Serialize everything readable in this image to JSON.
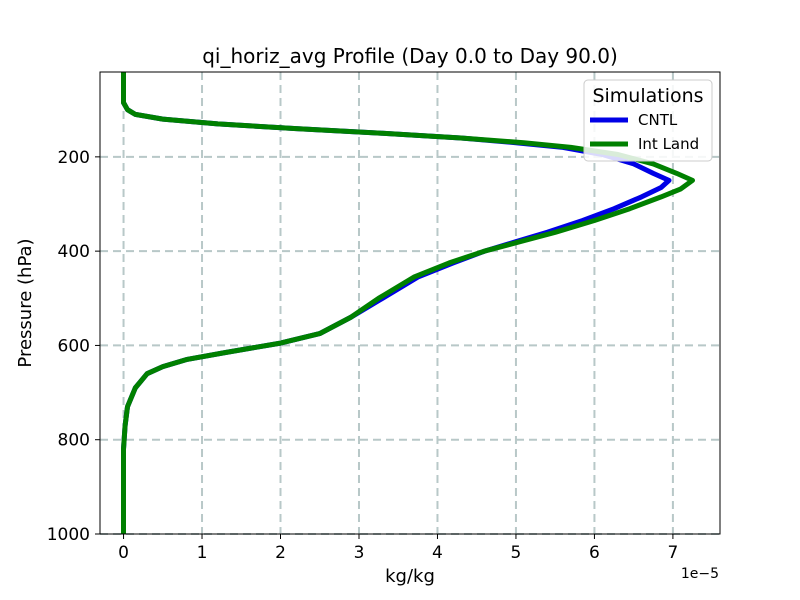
{
  "chart_data": {
    "type": "line",
    "title": "qi_horiz_avg Profile (Day 0.0 to Day 90.0)",
    "xlabel": "kg/kg",
    "ylabel": "Pressure (hPa)",
    "x_scale_label": "1e−5",
    "x_scale": 1e-05,
    "xlim": [
      -0.3,
      7.6
    ],
    "ylim": [
      1000,
      20
    ],
    "y_inverted": true,
    "x_ticks": [
      0,
      1,
      2,
      3,
      4,
      5,
      6,
      7
    ],
    "x_tick_labels": [
      "0",
      "1",
      "2",
      "3",
      "4",
      "5",
      "6",
      "7"
    ],
    "y_ticks": [
      200,
      400,
      600,
      800,
      1000
    ],
    "y_tick_labels": [
      "200",
      "400",
      "600",
      "800",
      "1000"
    ],
    "grid": true,
    "legend": {
      "title": "Simulations",
      "position": "top-right"
    },
    "series": [
      {
        "name": "CNTL",
        "color": "#0000e6",
        "points": [
          [
            0,
            20
          ],
          [
            0,
            85
          ],
          [
            0.05,
            100
          ],
          [
            0.15,
            110
          ],
          [
            0.5,
            120
          ],
          [
            1.2,
            130
          ],
          [
            2.2,
            140
          ],
          [
            3.3,
            150
          ],
          [
            4.3,
            160
          ],
          [
            5.0,
            170
          ],
          [
            5.6,
            180
          ],
          [
            6.1,
            195
          ],
          [
            6.5,
            215
          ],
          [
            6.75,
            235
          ],
          [
            6.95,
            250
          ],
          [
            6.85,
            265
          ],
          [
            6.6,
            285
          ],
          [
            6.25,
            310
          ],
          [
            5.85,
            335
          ],
          [
            5.4,
            360
          ],
          [
            5.0,
            380
          ],
          [
            4.6,
            400
          ],
          [
            4.2,
            425
          ],
          [
            3.75,
            455
          ],
          [
            3.3,
            500
          ],
          [
            2.9,
            540
          ],
          [
            2.5,
            575
          ],
          [
            2.0,
            595
          ],
          [
            1.3,
            615
          ],
          [
            0.8,
            630
          ],
          [
            0.5,
            645
          ],
          [
            0.3,
            660
          ],
          [
            0.15,
            690
          ],
          [
            0.05,
            730
          ],
          [
            0.02,
            770
          ],
          [
            0,
            820
          ],
          [
            0,
            1000
          ]
        ]
      },
      {
        "name": "Int Land",
        "color": "#008000",
        "points": [
          [
            0,
            20
          ],
          [
            0,
            85
          ],
          [
            0.05,
            100
          ],
          [
            0.15,
            110
          ],
          [
            0.5,
            120
          ],
          [
            1.2,
            130
          ],
          [
            2.2,
            140
          ],
          [
            3.3,
            150
          ],
          [
            4.3,
            160
          ],
          [
            5.1,
            170
          ],
          [
            5.7,
            180
          ],
          [
            6.3,
            195
          ],
          [
            6.75,
            215
          ],
          [
            7.05,
            235
          ],
          [
            7.25,
            250
          ],
          [
            7.1,
            268
          ],
          [
            6.85,
            285
          ],
          [
            6.45,
            310
          ],
          [
            6.0,
            335
          ],
          [
            5.5,
            360
          ],
          [
            5.05,
            380
          ],
          [
            4.6,
            400
          ],
          [
            4.15,
            425
          ],
          [
            3.7,
            455
          ],
          [
            3.25,
            500
          ],
          [
            2.9,
            540
          ],
          [
            2.5,
            575
          ],
          [
            2.0,
            595
          ],
          [
            1.3,
            615
          ],
          [
            0.8,
            630
          ],
          [
            0.5,
            645
          ],
          [
            0.3,
            660
          ],
          [
            0.15,
            690
          ],
          [
            0.05,
            730
          ],
          [
            0.02,
            770
          ],
          [
            0,
            820
          ],
          [
            0,
            1000
          ]
        ]
      }
    ]
  }
}
